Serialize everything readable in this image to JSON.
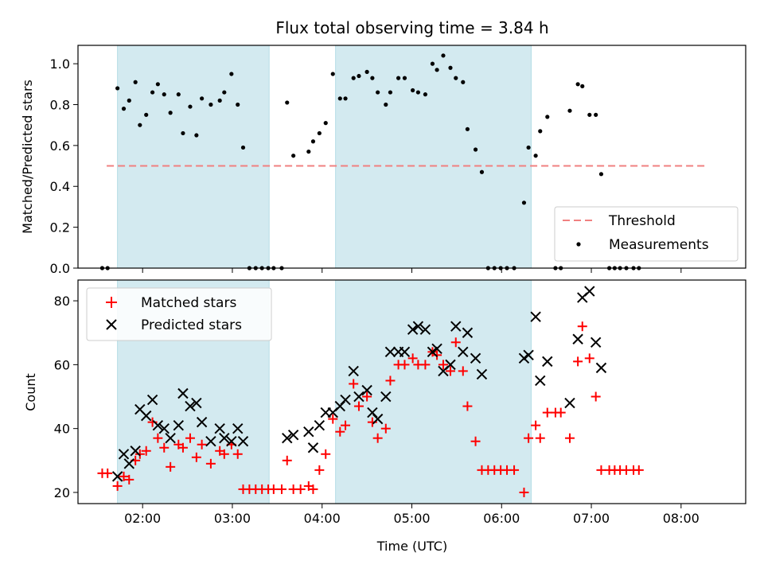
{
  "chart_data": {
    "title": "Flux total observing time = 3.84 h",
    "xlabel": "Time (UTC)",
    "x_unit": "hours UTC",
    "xlim": [
      1.28,
      8.72
    ],
    "x_ticks": [
      {
        "value": 2,
        "label": "02:00"
      },
      {
        "value": 3,
        "label": "03:00"
      },
      {
        "value": 4,
        "label": "04:00"
      },
      {
        "value": 5,
        "label": "05:00"
      },
      {
        "value": 6,
        "label": "06:00"
      },
      {
        "value": 7,
        "label": "07:00"
      },
      {
        "value": 8,
        "label": "08:00"
      }
    ],
    "shaded_intervals": [
      [
        1.72,
        3.41
      ],
      [
        4.15,
        6.33
      ]
    ],
    "shade_color": "#d3eaf0",
    "panels": [
      {
        "type": "scatter",
        "ylabel": "Matched/Predicted stars",
        "ylim": [
          0,
          1.09
        ],
        "y_ticks": [
          {
            "value": 0.0,
            "label": "0.0"
          },
          {
            "value": 0.2,
            "label": "0.2"
          },
          {
            "value": 0.4,
            "label": "0.4"
          },
          {
            "value": 0.6,
            "label": "0.6"
          },
          {
            "value": 0.8,
            "label": "0.8"
          },
          {
            "value": 1.0,
            "label": "1.0"
          }
        ],
        "legend": {
          "position": "lower-right",
          "entries": [
            "Threshold",
            "Measurements"
          ]
        },
        "threshold": {
          "name": "Threshold",
          "y": 0.5,
          "x_range": [
            1.6,
            8.3
          ],
          "color": "#f08080"
        },
        "series": [
          {
            "name": "Measurements",
            "color": "#000000",
            "marker": "dot",
            "points": [
              [
                1.55,
                0
              ],
              [
                1.61,
                0
              ],
              [
                1.72,
                0.88
              ],
              [
                1.79,
                0.78
              ],
              [
                1.85,
                0.82
              ],
              [
                1.92,
                0.91
              ],
              [
                1.97,
                0.7
              ],
              [
                2.04,
                0.75
              ],
              [
                2.11,
                0.86
              ],
              [
                2.17,
                0.9
              ],
              [
                2.24,
                0.85
              ],
              [
                2.31,
                0.76
              ],
              [
                2.4,
                0.85
              ],
              [
                2.45,
                0.66
              ],
              [
                2.53,
                0.79
              ],
              [
                2.6,
                0.65
              ],
              [
                2.66,
                0.83
              ],
              [
                2.76,
                0.8
              ],
              [
                2.86,
                0.82
              ],
              [
                2.91,
                0.86
              ],
              [
                2.99,
                0.95
              ],
              [
                3.06,
                0.8
              ],
              [
                3.12,
                0.59
              ],
              [
                3.19,
                0
              ],
              [
                3.26,
                0
              ],
              [
                3.33,
                0
              ],
              [
                3.4,
                0
              ],
              [
                3.46,
                0
              ],
              [
                3.55,
                0
              ],
              [
                3.61,
                0.81
              ],
              [
                3.68,
                0.55
              ],
              [
                3.85,
                0.57
              ],
              [
                3.9,
                0.62
              ],
              [
                3.97,
                0.66
              ],
              [
                4.04,
                0.71
              ],
              [
                4.12,
                0.95
              ],
              [
                4.2,
                0.83
              ],
              [
                4.26,
                0.83
              ],
              [
                4.35,
                0.93
              ],
              [
                4.41,
                0.94
              ],
              [
                4.5,
                0.96
              ],
              [
                4.56,
                0.93
              ],
              [
                4.62,
                0.86
              ],
              [
                4.71,
                0.8
              ],
              [
                4.76,
                0.86
              ],
              [
                4.85,
                0.93
              ],
              [
                4.92,
                0.93
              ],
              [
                5.01,
                0.87
              ],
              [
                5.07,
                0.86
              ],
              [
                5.15,
                0.85
              ],
              [
                5.23,
                1.0
              ],
              [
                5.28,
                0.97
              ],
              [
                5.35,
                1.04
              ],
              [
                5.43,
                0.98
              ],
              [
                5.49,
                0.93
              ],
              [
                5.57,
                0.91
              ],
              [
                5.62,
                0.68
              ],
              [
                5.71,
                0.58
              ],
              [
                5.78,
                0.47
              ],
              [
                5.85,
                0
              ],
              [
                5.92,
                0
              ],
              [
                5.99,
                0
              ],
              [
                6.06,
                0
              ],
              [
                6.14,
                0
              ],
              [
                6.25,
                0.32
              ],
              [
                6.3,
                0.59
              ],
              [
                6.38,
                0.55
              ],
              [
                6.43,
                0.67
              ],
              [
                6.51,
                0.74
              ],
              [
                6.6,
                0
              ],
              [
                6.66,
                0
              ],
              [
                6.76,
                0.77
              ],
              [
                6.85,
                0.9
              ],
              [
                6.9,
                0.89
              ],
              [
                6.98,
                0.75
              ],
              [
                7.05,
                0.75
              ],
              [
                7.11,
                0.46
              ],
              [
                7.2,
                0
              ],
              [
                7.26,
                0
              ],
              [
                7.32,
                0
              ],
              [
                7.39,
                0
              ],
              [
                7.47,
                0
              ],
              [
                7.53,
                0
              ]
            ]
          }
        ]
      },
      {
        "type": "scatter",
        "ylabel": "Count",
        "ylim": [
          16.5,
          86.5
        ],
        "y_ticks": [
          {
            "value": 20,
            "label": "20"
          },
          {
            "value": 40,
            "label": "40"
          },
          {
            "value": 60,
            "label": "60"
          },
          {
            "value": 80,
            "label": "80"
          }
        ],
        "legend": {
          "position": "upper-left",
          "entries": [
            "Matched stars",
            "Predicted stars"
          ]
        },
        "series": [
          {
            "name": "Matched stars",
            "color": "#ff0000",
            "marker": "plus",
            "points": [
              [
                1.55,
                26
              ],
              [
                1.61,
                26
              ],
              [
                1.72,
                22
              ],
              [
                1.79,
                25
              ],
              [
                1.85,
                24
              ],
              [
                1.92,
                30
              ],
              [
                1.97,
                32
              ],
              [
                2.04,
                33
              ],
              [
                2.11,
                42
              ],
              [
                2.17,
                37
              ],
              [
                2.24,
                34
              ],
              [
                2.31,
                28
              ],
              [
                2.4,
                35
              ],
              [
                2.45,
                34
              ],
              [
                2.53,
                37
              ],
              [
                2.6,
                31
              ],
              [
                2.66,
                35
              ],
              [
                2.76,
                29
              ],
              [
                2.86,
                33
              ],
              [
                2.91,
                32
              ],
              [
                2.99,
                35
              ],
              [
                3.06,
                32
              ],
              [
                3.12,
                21
              ],
              [
                3.19,
                21
              ],
              [
                3.26,
                21
              ],
              [
                3.33,
                21
              ],
              [
                3.4,
                21
              ],
              [
                3.46,
                21
              ],
              [
                3.55,
                21
              ],
              [
                3.61,
                30
              ],
              [
                3.68,
                21
              ],
              [
                3.76,
                21
              ],
              [
                3.85,
                22
              ],
              [
                3.9,
                21
              ],
              [
                3.97,
                27
              ],
              [
                4.04,
                32
              ],
              [
                4.12,
                43
              ],
              [
                4.2,
                39
              ],
              [
                4.26,
                41
              ],
              [
                4.35,
                54
              ],
              [
                4.41,
                47
              ],
              [
                4.5,
                50
              ],
              [
                4.56,
                42
              ],
              [
                4.62,
                37
              ],
              [
                4.71,
                40
              ],
              [
                4.76,
                55
              ],
              [
                4.85,
                60
              ],
              [
                4.92,
                60
              ],
              [
                5.01,
                62
              ],
              [
                5.07,
                60
              ],
              [
                5.15,
                60
              ],
              [
                5.23,
                64
              ],
              [
                5.28,
                63
              ],
              [
                5.35,
                60
              ],
              [
                5.43,
                58
              ],
              [
                5.49,
                67
              ],
              [
                5.57,
                58
              ],
              [
                5.62,
                47
              ],
              [
                5.71,
                36
              ],
              [
                5.78,
                27
              ],
              [
                5.85,
                27
              ],
              [
                5.92,
                27
              ],
              [
                5.99,
                27
              ],
              [
                6.06,
                27
              ],
              [
                6.14,
                27
              ],
              [
                6.25,
                20
              ],
              [
                6.3,
                37
              ],
              [
                6.38,
                41
              ],
              [
                6.43,
                37
              ],
              [
                6.51,
                45
              ],
              [
                6.6,
                45
              ],
              [
                6.66,
                45
              ],
              [
                6.76,
                37
              ],
              [
                6.85,
                61
              ],
              [
                6.9,
                72
              ],
              [
                6.98,
                62
              ],
              [
                7.05,
                50
              ],
              [
                7.11,
                27
              ],
              [
                7.2,
                27
              ],
              [
                7.26,
                27
              ],
              [
                7.32,
                27
              ],
              [
                7.39,
                27
              ],
              [
                7.47,
                27
              ],
              [
                7.53,
                27
              ]
            ]
          },
          {
            "name": "Predicted stars",
            "color": "#000000",
            "marker": "x",
            "points": [
              [
                1.72,
                25
              ],
              [
                1.79,
                32
              ],
              [
                1.85,
                29
              ],
              [
                1.92,
                33
              ],
              [
                1.97,
                46
              ],
              [
                2.04,
                44
              ],
              [
                2.11,
                49
              ],
              [
                2.17,
                41
              ],
              [
                2.24,
                40
              ],
              [
                2.31,
                37
              ],
              [
                2.4,
                41
              ],
              [
                2.45,
                51
              ],
              [
                2.53,
                47
              ],
              [
                2.6,
                48
              ],
              [
                2.66,
                42
              ],
              [
                2.76,
                36
              ],
              [
                2.86,
                40
              ],
              [
                2.91,
                37
              ],
              [
                2.99,
                36
              ],
              [
                3.06,
                40
              ],
              [
                3.12,
                36
              ],
              [
                3.61,
                37
              ],
              [
                3.68,
                38
              ],
              [
                3.85,
                39
              ],
              [
                3.9,
                34
              ],
              [
                3.97,
                41
              ],
              [
                4.04,
                45
              ],
              [
                4.12,
                45
              ],
              [
                4.2,
                47
              ],
              [
                4.26,
                49
              ],
              [
                4.35,
                58
              ],
              [
                4.41,
                50
              ],
              [
                4.5,
                52
              ],
              [
                4.56,
                45
              ],
              [
                4.62,
                43
              ],
              [
                4.71,
                50
              ],
              [
                4.76,
                64
              ],
              [
                4.85,
                64
              ],
              [
                4.92,
                64
              ],
              [
                5.01,
                71
              ],
              [
                5.07,
                72
              ],
              [
                5.15,
                71
              ],
              [
                5.23,
                64
              ],
              [
                5.28,
                65
              ],
              [
                5.35,
                58
              ],
              [
                5.43,
                60
              ],
              [
                5.49,
                72
              ],
              [
                5.57,
                64
              ],
              [
                5.62,
                70
              ],
              [
                5.71,
                62
              ],
              [
                5.78,
                57
              ],
              [
                6.25,
                62
              ],
              [
                6.3,
                63
              ],
              [
                6.38,
                75
              ],
              [
                6.43,
                55
              ],
              [
                6.51,
                61
              ],
              [
                6.76,
                48
              ],
              [
                6.85,
                68
              ],
              [
                6.9,
                81
              ],
              [
                6.98,
                83
              ],
              [
                7.05,
                67
              ],
              [
                7.11,
                59
              ]
            ]
          }
        ]
      }
    ]
  }
}
